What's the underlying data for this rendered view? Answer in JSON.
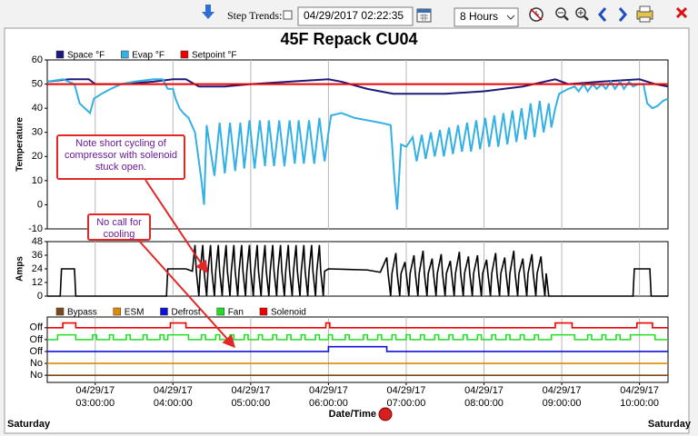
{
  "toolbar": {
    "step_trends": "Step Trends:",
    "datetime": "04/29/2017 02:22:35",
    "range": "8 Hours"
  },
  "chart_data": [
    {
      "type": "line",
      "title": "45F Repack CU04",
      "y_label": "Temperature",
      "xlim": [
        "02:23",
        "10:22"
      ],
      "ylim": [
        -10,
        60
      ],
      "yticks": [
        -10,
        0,
        10,
        20,
        30,
        40,
        50,
        60
      ],
      "series": [
        {
          "name": "Space °F",
          "color": "#1c1c78",
          "x": [
            "02:23",
            "02:40",
            "02:55",
            "03:00",
            "03:20",
            "03:45",
            "04:00",
            "04:10",
            "04:20",
            "04:40",
            "05:00",
            "05:30",
            "06:00",
            "06:10",
            "06:30",
            "06:50",
            "07:30",
            "08:00",
            "08:30",
            "08:55",
            "09:05",
            "09:30",
            "10:00",
            "10:12",
            "10:22"
          ],
          "values": [
            51,
            52,
            52,
            50,
            50,
            51,
            52,
            52,
            49,
            49,
            50,
            51,
            52,
            51,
            48,
            46,
            46,
            47,
            49,
            52,
            50,
            51,
            52,
            50,
            49
          ]
        },
        {
          "name": "Evap °F",
          "color": "#33b0e6",
          "x": [
            "02:23",
            "02:35",
            "02:44",
            "02:48",
            "02:52",
            "02:56",
            "02:59",
            "03:05",
            "03:12",
            "03:20",
            "03:30",
            "03:45",
            "03:52",
            "03:56",
            "04:00",
            "04:02",
            "04:05",
            "04:08",
            "04:12",
            "04:17",
            "04:22",
            "04:24",
            "04:26",
            "04:32",
            "04:36",
            "04:40",
            "04:44",
            "04:48",
            "04:52",
            "04:55",
            "04:59",
            "05:03",
            "05:07",
            "05:11",
            "05:14",
            "05:18",
            "05:22",
            "05:26",
            "05:30",
            "05:34",
            "05:37",
            "05:41",
            "05:45",
            "05:49",
            "05:53",
            "05:57",
            "06:00",
            "06:02",
            "06:10",
            "06:20",
            "06:30",
            "06:40",
            "06:48",
            "06:51",
            "06:53",
            "06:56",
            "07:00",
            "07:05",
            "07:08",
            "07:12",
            "07:15",
            "07:19",
            "07:22",
            "07:26",
            "07:29",
            "07:33",
            "07:36",
            "07:40",
            "07:43",
            "07:47",
            "07:50",
            "07:54",
            "07:57",
            "08:01",
            "08:04",
            "08:08",
            "08:11",
            "08:15",
            "08:18",
            "08:22",
            "08:25",
            "08:29",
            "08:32",
            "08:36",
            "08:39",
            "08:43",
            "08:46",
            "08:50",
            "08:52",
            "08:55",
            "08:58",
            "09:05",
            "09:10",
            "09:13",
            "09:17",
            "09:20",
            "09:24",
            "09:27",
            "09:31",
            "09:34",
            "09:38",
            "09:41",
            "09:45",
            "09:48",
            "09:52",
            "09:55",
            "09:59",
            "10:03",
            "10:06",
            "10:10",
            "10:14",
            "10:18",
            "10:22"
          ],
          "values": [
            51,
            52,
            50,
            42,
            40,
            38,
            44,
            46,
            48,
            50,
            51,
            52,
            52,
            48,
            48,
            44,
            40,
            38,
            36,
            30,
            10,
            0,
            33,
            12,
            34,
            13,
            34,
            14,
            34,
            15,
            35,
            15,
            35,
            16,
            35,
            16,
            35,
            16,
            35,
            17,
            35,
            17,
            35,
            17,
            36,
            18,
            30,
            37,
            38,
            36,
            35,
            34,
            33,
            10,
            -2,
            25,
            24,
            28,
            18,
            29,
            19,
            30,
            20,
            31,
            20,
            32,
            21,
            33,
            22,
            34,
            22,
            35,
            23,
            36,
            24,
            37,
            24,
            38,
            25,
            39,
            26,
            40,
            27,
            42,
            28,
            43,
            30,
            42,
            32,
            40,
            46,
            48,
            49,
            47,
            50,
            47,
            50,
            48,
            50,
            48,
            51,
            48,
            51,
            48,
            51,
            49,
            50,
            50,
            42,
            40,
            41,
            43,
            44
          ]
        },
        {
          "name": "Setpoint °F",
          "color": "#ee0000",
          "x": [
            "02:23",
            "10:22"
          ],
          "values": [
            50,
            50
          ]
        }
      ],
      "annotations": [
        {
          "text": "Note short cycling of compressor with solenoid stuck open."
        },
        {
          "text": "No call for cooling"
        }
      ]
    },
    {
      "type": "line",
      "y_label": "Amps",
      "xlim": [
        "02:23",
        "10:22"
      ],
      "ylim": [
        0,
        48
      ],
      "yticks": [
        0,
        12,
        24,
        36,
        48
      ],
      "color": "#000000",
      "x": [
        "02:23",
        "02:33",
        "02:34",
        "02:44",
        "02:45",
        "03:55",
        "03:56",
        "04:10",
        "04:15",
        "04:17",
        "04:18",
        "04:20",
        "04:21",
        "04:23",
        "04:24",
        "04:26",
        "04:27",
        "04:29",
        "04:30",
        "04:32",
        "04:33",
        "04:35",
        "04:36",
        "04:38",
        "04:39",
        "04:41",
        "04:42",
        "04:44",
        "04:45",
        "04:47",
        "04:48",
        "04:50",
        "04:51",
        "04:53",
        "04:54",
        "04:56",
        "04:57",
        "04:59",
        "05:00",
        "05:02",
        "05:03",
        "05:05",
        "05:06",
        "05:08",
        "05:09",
        "05:11",
        "05:12",
        "05:14",
        "05:15",
        "05:17",
        "05:18",
        "05:20",
        "05:21",
        "05:23",
        "05:24",
        "05:26",
        "05:27",
        "05:29",
        "05:30",
        "05:32",
        "05:33",
        "05:35",
        "05:36",
        "05:38",
        "05:39",
        "05:41",
        "05:42",
        "05:44",
        "05:45",
        "05:47",
        "05:48",
        "05:50",
        "05:51",
        "05:53",
        "05:54",
        "05:56",
        "05:57",
        "06:00",
        "06:30",
        "06:35",
        "06:40",
        "06:45",
        "06:46",
        "06:48",
        "06:49",
        "06:52",
        "06:53",
        "06:55",
        "06:56",
        "06:59",
        "07:00",
        "07:02",
        "07:03",
        "07:06",
        "07:07",
        "07:09",
        "07:10",
        "07:13",
        "07:14",
        "07:16",
        "07:17",
        "07:20",
        "07:21",
        "07:23",
        "07:24",
        "07:27",
        "07:28",
        "07:30",
        "07:31",
        "07:34",
        "07:35",
        "07:37",
        "07:38",
        "07:41",
        "07:42",
        "07:44",
        "07:45",
        "07:48",
        "07:49",
        "07:51",
        "07:52",
        "07:55",
        "07:56",
        "07:58",
        "07:59",
        "08:02",
        "08:03",
        "08:05",
        "08:06",
        "08:09",
        "08:10",
        "08:12",
        "08:13",
        "08:16",
        "08:17",
        "08:19",
        "08:20",
        "08:23",
        "08:24",
        "08:26",
        "08:27",
        "08:30",
        "08:31",
        "08:33",
        "08:34",
        "08:37",
        "08:38",
        "08:40",
        "08:41",
        "08:44",
        "08:45",
        "08:47",
        "08:48",
        "08:50",
        "09:55",
        "09:56",
        "10:08",
        "10:09",
        "10:22"
      ],
      "values": [
        0,
        0,
        24,
        24,
        0,
        0,
        24,
        24,
        22,
        45,
        22,
        0,
        22,
        45,
        22,
        0,
        22,
        45,
        22,
        0,
        22,
        45,
        22,
        0,
        22,
        45,
        22,
        0,
        22,
        45,
        22,
        0,
        22,
        45,
        22,
        0,
        22,
        45,
        22,
        0,
        22,
        45,
        22,
        0,
        22,
        45,
        22,
        0,
        22,
        45,
        22,
        0,
        22,
        45,
        22,
        0,
        22,
        45,
        22,
        0,
        22,
        45,
        22,
        0,
        22,
        45,
        22,
        0,
        22,
        45,
        22,
        0,
        22,
        45,
        22,
        0,
        22,
        24,
        23,
        22,
        21,
        34,
        20,
        0,
        20,
        38,
        20,
        0,
        20,
        30,
        20,
        0,
        20,
        36,
        20,
        0,
        20,
        40,
        20,
        0,
        20,
        33,
        20,
        0,
        20,
        37,
        20,
        0,
        20,
        31,
        20,
        0,
        20,
        39,
        20,
        0,
        20,
        35,
        20,
        0,
        20,
        36,
        20,
        0,
        20,
        32,
        20,
        0,
        20,
        38,
        20,
        0,
        20,
        34,
        20,
        0,
        20,
        40,
        20,
        0,
        20,
        33,
        20,
        0,
        20,
        37,
        20,
        0,
        20,
        35,
        20,
        0,
        20,
        0,
        0,
        24,
        24,
        0,
        0
      ]
    },
    {
      "type": "step",
      "x_label": "Date/Time",
      "xlim": [
        "02:23",
        "10:22"
      ],
      "ylim": [
        -0.6,
        4.9
      ],
      "yticks": [
        {
          "value": 0,
          "label": "No"
        },
        {
          "value": 1,
          "label": "No"
        },
        {
          "value": 2,
          "label": "Off"
        },
        {
          "value": 3,
          "label": "Off"
        },
        {
          "value": 4,
          "label": "Off"
        }
      ],
      "xticks": [
        {
          "value": "03:00",
          "label": [
            "04/29/17",
            "03:00:00"
          ]
        },
        {
          "value": "04:00",
          "label": [
            "04/29/17",
            "04:00:00"
          ]
        },
        {
          "value": "05:00",
          "label": [
            "04/29/17",
            "05:00:00"
          ]
        },
        {
          "value": "06:00",
          "label": [
            "04/29/17",
            "06:00:00"
          ]
        },
        {
          "value": "07:00",
          "label": [
            "04/29/17",
            "07:00:00"
          ]
        },
        {
          "value": "08:00",
          "label": [
            "04/29/17",
            "08:00:00"
          ]
        },
        {
          "value": "09:00",
          "label": [
            "04/29/17",
            "09:00:00"
          ]
        },
        {
          "value": "10:00",
          "label": [
            "04/29/17",
            "10:00:00"
          ]
        }
      ],
      "series": [
        {
          "name": "Bypass",
          "color": "#7a4a1a",
          "x": [
            "02:23",
            "10:22"
          ],
          "values": [
            0,
            0
          ]
        },
        {
          "name": "ESM",
          "color": "#e08a00",
          "x": [
            "02:23",
            "10:22"
          ],
          "values": [
            1,
            1
          ]
        },
        {
          "name": "Defrost",
          "color": "#1010dd",
          "x": [
            "02:23",
            "06:00",
            "06:45",
            "10:22"
          ],
          "values": [
            2,
            2.4,
            2,
            2
          ]
        },
        {
          "name": "Fan",
          "color": "#22dd22",
          "x": [
            "02:23",
            "02:31",
            "02:45",
            "02:58",
            "03:01",
            "03:11",
            "03:14",
            "03:24",
            "03:27",
            "03:37",
            "03:40",
            "03:50",
            "03:53",
            "03:56",
            "04:12",
            "04:22",
            "04:25",
            "04:33",
            "04:36",
            "04:44",
            "04:47",
            "04:55",
            "04:58",
            "05:06",
            "05:09",
            "05:17",
            "05:20",
            "05:28",
            "05:31",
            "05:39",
            "05:42",
            "05:50",
            "05:53",
            "06:00",
            "06:03",
            "06:13",
            "06:16",
            "06:27",
            "06:30",
            "06:38",
            "06:41",
            "06:49",
            "06:52",
            "07:00",
            "07:03",
            "07:11",
            "07:14",
            "07:22",
            "07:25",
            "07:33",
            "07:36",
            "07:44",
            "07:47",
            "07:55",
            "07:58",
            "08:06",
            "08:09",
            "08:17",
            "08:20",
            "08:28",
            "08:31",
            "08:39",
            "08:42",
            "08:52",
            "09:10",
            "09:20",
            "09:23",
            "09:31",
            "09:34",
            "09:42",
            "09:45",
            "09:53",
            "10:12",
            "10:22"
          ],
          "values": [
            3,
            3.4,
            3,
            3.4,
            3,
            3.4,
            3,
            3.4,
            3,
            3.4,
            3,
            3.4,
            3,
            3.4,
            3,
            3.4,
            3,
            3.4,
            3,
            3.4,
            3,
            3.4,
            3,
            3.4,
            3,
            3.4,
            3,
            3.4,
            3,
            3.4,
            3,
            3.4,
            3,
            3.4,
            3,
            3.4,
            3,
            3.4,
            3,
            3.4,
            3,
            3.4,
            3,
            3.4,
            3,
            3.4,
            3,
            3.4,
            3,
            3.4,
            3,
            3.4,
            3,
            3.4,
            3,
            3.4,
            3,
            3.4,
            3,
            3.4,
            3,
            3.4,
            3,
            3.4,
            3,
            3.4,
            3,
            3.4,
            3,
            3.4,
            3,
            3.4,
            3,
            3
          ]
        },
        {
          "name": "Solenoid",
          "color": "#ee0000",
          "x": [
            "02:23",
            "02:35",
            "02:45",
            "03:58",
            "04:10",
            "05:58",
            "06:01",
            "08:55",
            "09:08",
            "09:58",
            "10:10",
            "10:22"
          ],
          "values": [
            4,
            4.4,
            4,
            4.4,
            4,
            4.4,
            4,
            4.4,
            4,
            4.4,
            4,
            4
          ]
        }
      ]
    }
  ],
  "day_labels": [
    "Saturday",
    "Saturday"
  ]
}
